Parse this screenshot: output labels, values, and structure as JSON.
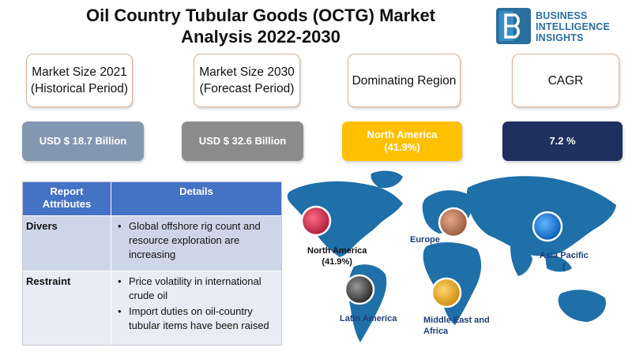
{
  "header": {
    "title_line1": "Oil Country Tubular Goods (OCTG) Market",
    "title_line2": "Analysis 2022-2030"
  },
  "brand": {
    "line1": "BUSINESS",
    "line2": "INTELLIGENCE",
    "line3": "INSIGHTS",
    "color": "#2a6f9e"
  },
  "metrics": [
    {
      "label_line1": "Market Size 2021",
      "label_line2": "(Historical Period)",
      "value_line1": "USD $ 18.7 Billion",
      "value_line2": "",
      "color": "#8497b0"
    },
    {
      "label_line1": "Market Size 2030",
      "label_line2": "(Forecast Period)",
      "value_line1": "USD $ 32.6 Billion",
      "value_line2": "",
      "color": "#8c8c8c"
    },
    {
      "label_line1": "Dominating Region",
      "label_line2": "",
      "value_line1": "North America",
      "value_line2": "(41.9%)",
      "color": "#ffc000"
    },
    {
      "label_line1": "CAGR",
      "label_line2": "",
      "value_line1": "7.2 %",
      "value_line2": "",
      "color": "#1f2f5f"
    }
  ],
  "table": {
    "header": {
      "col1_line1": "Report",
      "col1_line2": "Attributes",
      "col2": "Details"
    },
    "rows": [
      {
        "attribute": "Divers",
        "details": [
          "Global offshore rig count and resource exploration are increasing"
        ]
      },
      {
        "attribute": "Restraint",
        "details": [
          "Price volatility in international crude oil",
          "Import duties on oil-country tubular items have been raised"
        ]
      }
    ]
  },
  "map": {
    "regions": [
      {
        "name_line1": "North America",
        "name_line2": "(41.9%)",
        "marker_color": "#e83a5a"
      },
      {
        "name_line1": "Europe",
        "name_line2": "",
        "marker_color": "#c98a68"
      },
      {
        "name_line1": "Asia Pacific",
        "name_line2": "(",
        "marker_color": "#1e88e5"
      },
      {
        "name_line1": "Latin America",
        "name_line2": "",
        "marker_color": "#555555"
      },
      {
        "name_line1": "Middle East and",
        "name_line2": "Africa",
        "marker_color": "#f2b632"
      }
    ]
  }
}
